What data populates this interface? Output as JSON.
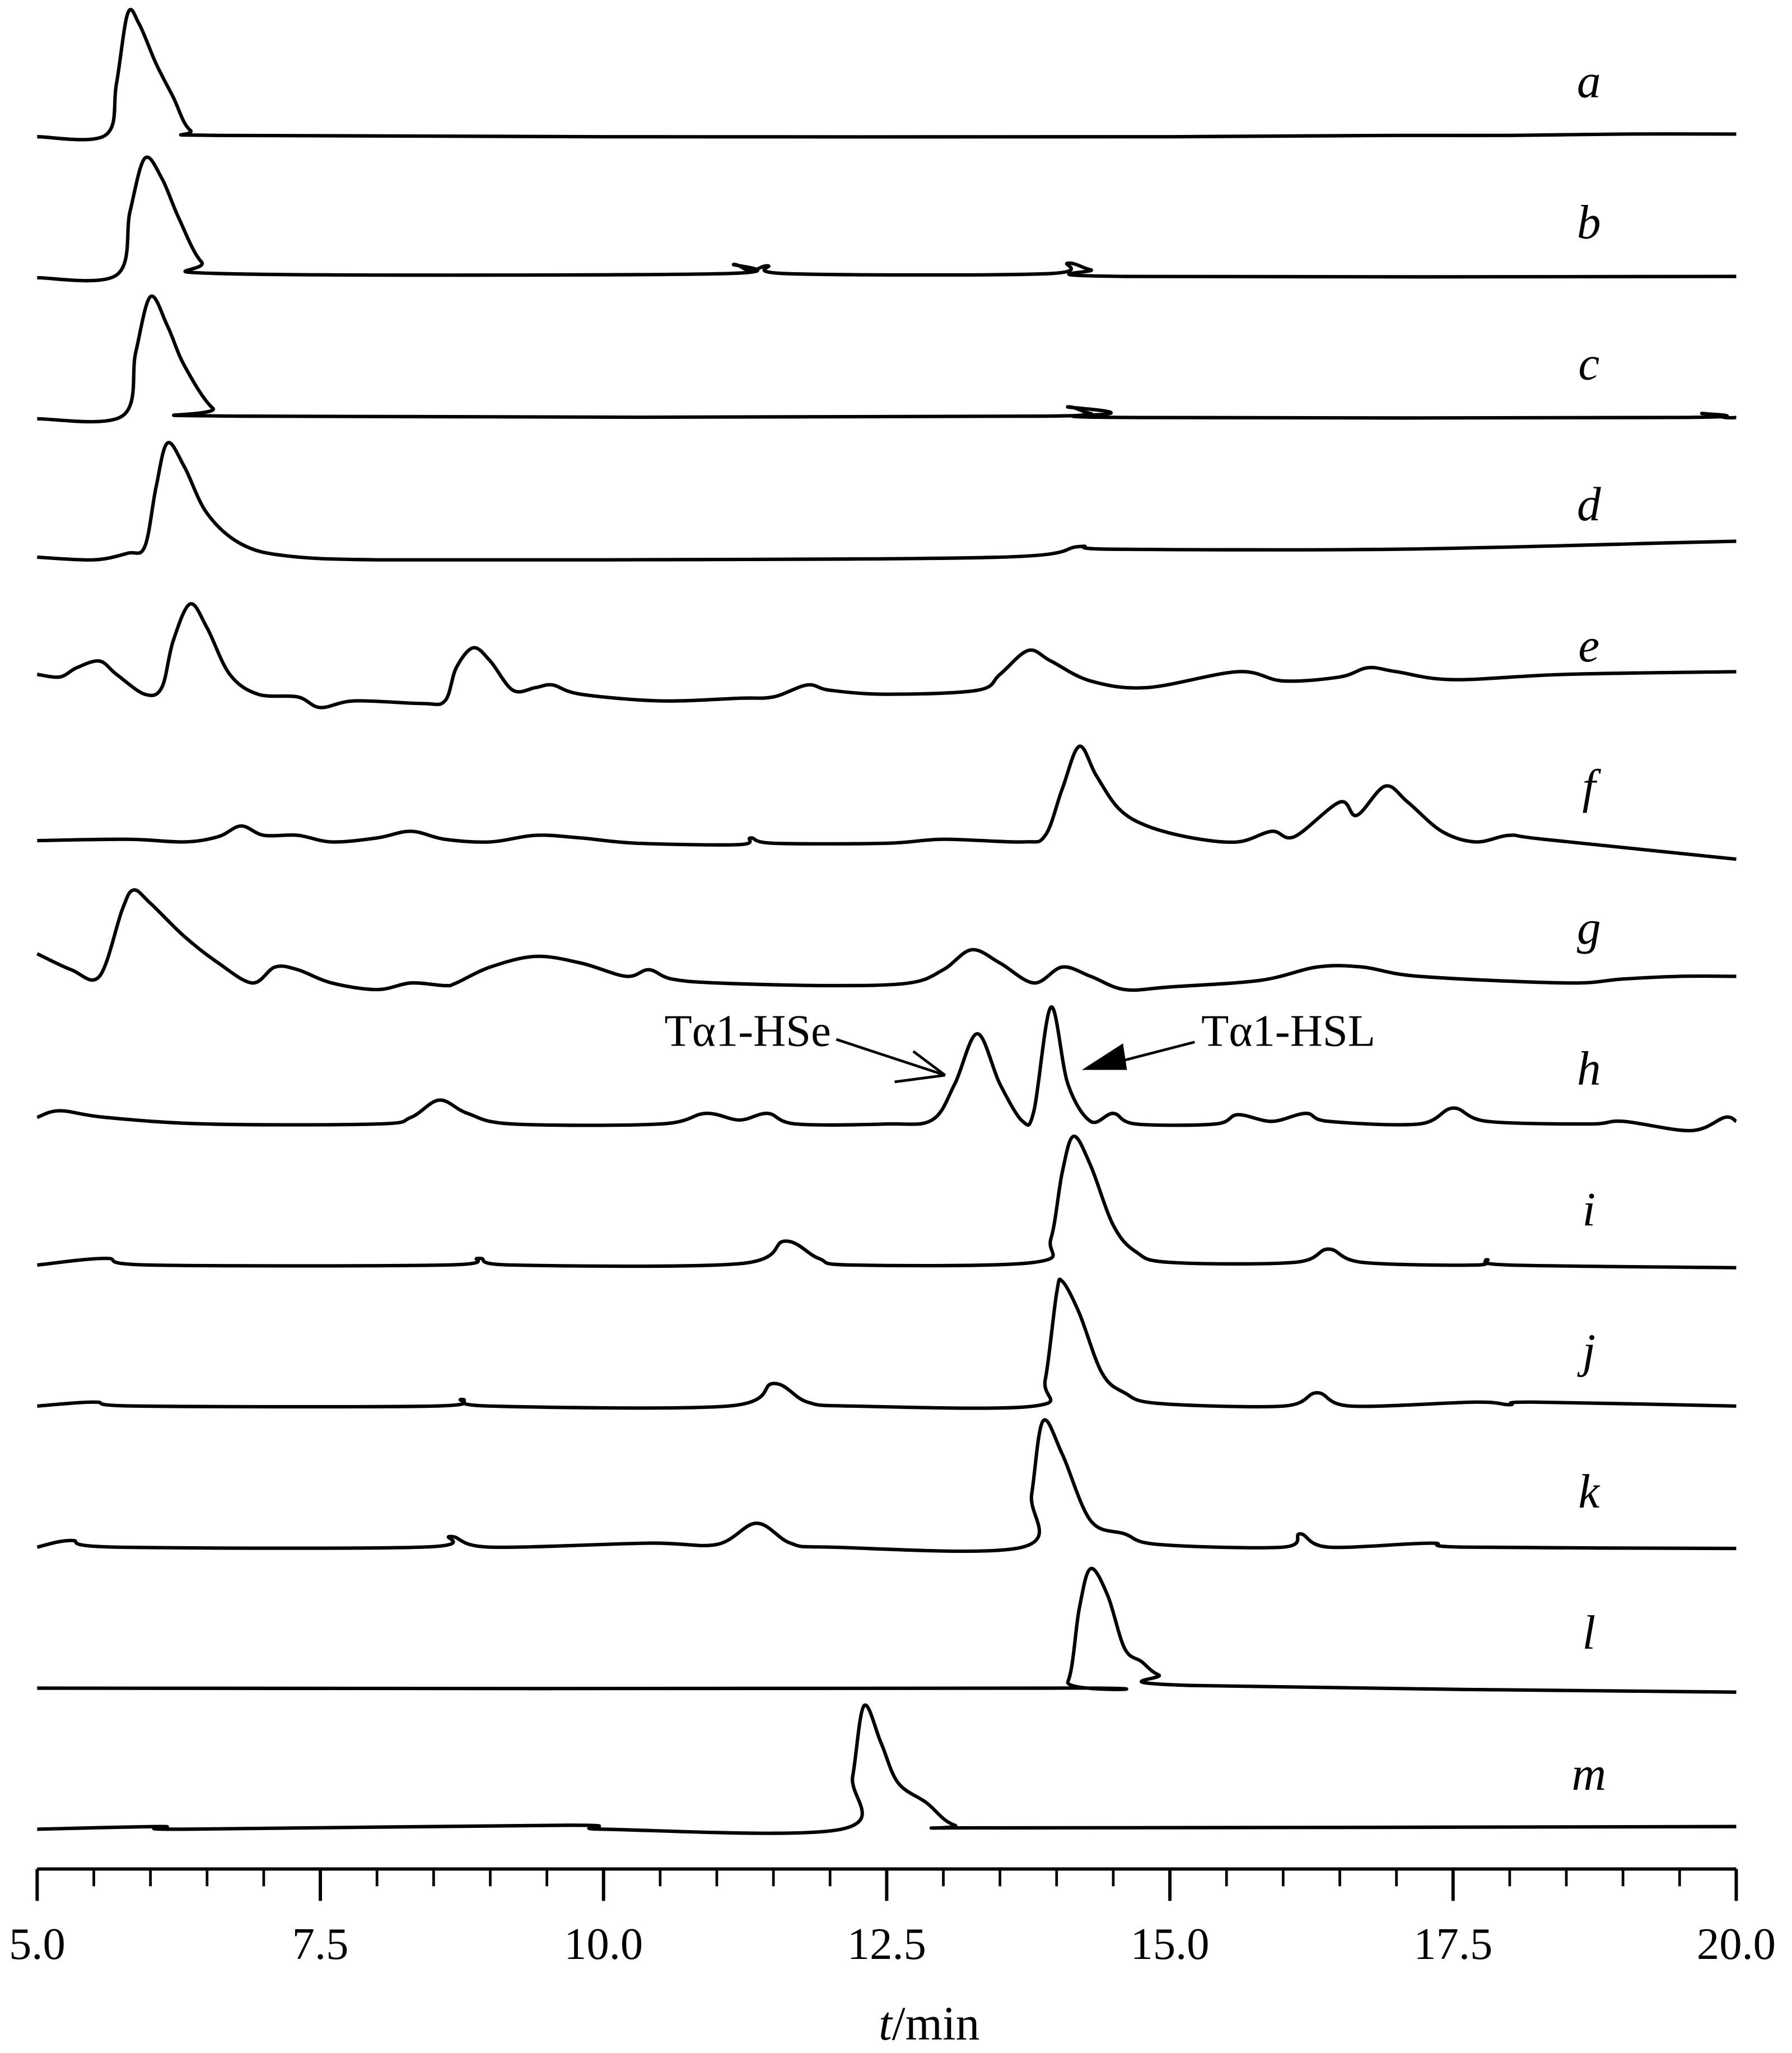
{
  "chart_data": {
    "type": "line",
    "color": "#000000",
    "xlabel_var": "t",
    "xlabel_unit": "/min",
    "xlim": [
      5,
      20
    ],
    "xticks": [
      {
        "value": 5,
        "label": "5.0"
      },
      {
        "value": 7.5,
        "label": "7.5"
      },
      {
        "value": 10,
        "label": "10.0"
      },
      {
        "value": 12.5,
        "label": "12.5"
      },
      {
        "value": 15,
        "label": "15.0"
      },
      {
        "value": 17.5,
        "label": "17.5"
      },
      {
        "value": 20,
        "label": "20.0"
      }
    ],
    "xminorticks": [
      5.5,
      6,
      6.5,
      7,
      8,
      8.5,
      9,
      9.5,
      10.5,
      11,
      11.5,
      12,
      13,
      13.5,
      14,
      14.5,
      15.5,
      16,
      16.5,
      17,
      18,
      18.5,
      19,
      19.5
    ],
    "annotations": [
      {
        "text": "Tα1-HSe"
      },
      {
        "text": "Tα1-HSL"
      }
    ],
    "series": [
      {
        "name": "a",
        "x": [
          5.0,
          5.6,
          5.7,
          5.8,
          5.9,
          6.05,
          6.2,
          6.35,
          6.6,
          10.0,
          15.0,
          17.0,
          18.0,
          19.0,
          20.0
        ],
        "values": [
          0,
          1,
          40,
          93,
          85,
          55,
          30,
          5,
          1,
          0,
          0,
          1,
          1,
          2,
          2
        ]
      },
      {
        "name": "b",
        "x": [
          5.0,
          5.7,
          5.82,
          5.95,
          6.1,
          6.25,
          6.45,
          6.7,
          11.0,
          11.15,
          11.3,
          11.45,
          11.65,
          13.9,
          14.1,
          14.3,
          14.6,
          20.0
        ],
        "values": [
          0,
          2,
          50,
          90,
          75,
          45,
          12,
          3,
          3,
          10,
          5,
          9,
          3,
          3,
          11,
          6,
          1,
          1
        ]
      },
      {
        "name": "c",
        "x": [
          5.0,
          5.75,
          5.87,
          6.0,
          6.15,
          6.3,
          6.55,
          6.8,
          13.9,
          14.1,
          14.3,
          14.6,
          19.5,
          19.7,
          19.9,
          20.0
        ],
        "values": [
          0,
          2,
          50,
          92,
          70,
          40,
          8,
          2,
          2,
          9,
          4,
          1,
          1,
          4,
          1,
          1
        ]
      },
      {
        "name": "d",
        "x": [
          5.0,
          5.5,
          5.8,
          5.95,
          6.05,
          6.15,
          6.3,
          6.5,
          6.8,
          7.2,
          8.0,
          10.0,
          13.5,
          14.2,
          14.5,
          17.0,
          19.5,
          20.0
        ],
        "values": [
          2,
          0,
          5,
          10,
          55,
          88,
          70,
          35,
          12,
          3,
          0,
          0,
          2,
          10,
          8,
          8,
          13,
          14
        ]
      },
      {
        "name": "e",
        "x": [
          5.0,
          5.2,
          5.35,
          5.55,
          5.7,
          5.95,
          6.1,
          6.2,
          6.35,
          6.5,
          6.7,
          6.95,
          7.3,
          7.5,
          7.8,
          8.4,
          8.6,
          8.7,
          8.85,
          9.0,
          9.2,
          9.4,
          9.55,
          9.8,
          10.5,
          11.2,
          11.5,
          11.8,
          12.0,
          12.5,
          13.3,
          13.5,
          13.75,
          13.95,
          14.3,
          14.8,
          15.6,
          16.0,
          16.5,
          16.75,
          17.0,
          17.5,
          18.5,
          20.0
        ],
        "values": [
          20,
          18,
          25,
          30,
          20,
          5,
          10,
          45,
          73,
          55,
          20,
          5,
          3,
          -5,
          0,
          -2,
          0,
          25,
          40,
          30,
          8,
          10,
          12,
          5,
          0,
          2,
          3,
          12,
          8,
          5,
          8,
          20,
          38,
          30,
          15,
          10,
          22,
          15,
          18,
          25,
          22,
          16,
          20,
          22
        ]
      },
      {
        "name": "f",
        "x": [
          5.0,
          5.8,
          6.3,
          6.6,
          6.8,
          7.0,
          7.3,
          7.6,
          8.0,
          8.3,
          8.6,
          9.0,
          9.4,
          9.8,
          10.3,
          11.2,
          11.3,
          11.5,
          12.5,
          13.0,
          13.7,
          13.9,
          14.05,
          14.2,
          14.35,
          14.55,
          14.8,
          15.2,
          15.6,
          15.9,
          16.1,
          16.5,
          16.65,
          16.9,
          17.1,
          17.4,
          17.7,
          18.0,
          18.3,
          20.0
        ],
        "values": [
          1,
          2,
          0,
          4,
          12,
          5,
          5,
          0,
          3,
          8,
          2,
          0,
          5,
          3,
          -1,
          -2,
          3,
          -1,
          -1,
          2,
          0,
          5,
          40,
          72,
          50,
          25,
          12,
          3,
          0,
          8,
          4,
          30,
          20,
          42,
          30,
          8,
          0,
          5,
          2,
          -13
        ]
      },
      {
        "name": "g",
        "x": [
          5.0,
          5.3,
          5.55,
          5.75,
          5.85,
          6.0,
          6.3,
          6.6,
          6.9,
          7.1,
          7.3,
          7.6,
          8.0,
          8.3,
          8.6,
          8.7,
          9.0,
          9.4,
          9.8,
          10.2,
          10.4,
          10.6,
          11.0,
          12.0,
          12.7,
          13.0,
          13.25,
          13.5,
          13.8,
          14.05,
          14.3,
          14.6,
          15.0,
          15.8,
          16.3,
          16.7,
          17.2,
          18.5,
          19.0,
          19.5,
          20.0
        ],
        "values": [
          22,
          10,
          5,
          55,
          70,
          60,
          35,
          15,
          0,
          12,
          10,
          0,
          -5,
          0,
          -2,
          0,
          12,
          20,
          15,
          5,
          10,
          3,
          0,
          -2,
          0,
          10,
          25,
          15,
          0,
          12,
          5,
          -5,
          -3,
          2,
          12,
          12,
          5,
          0,
          3,
          5,
          5
        ]
      },
      {
        "name": "h",
        "x": [
          5.0,
          5.2,
          5.6,
          6.5,
          8.0,
          8.3,
          8.55,
          8.8,
          9.2,
          10.5,
          10.9,
          11.2,
          11.45,
          11.7,
          12.5,
          12.9,
          13.1,
          13.3,
          13.5,
          13.7,
          13.8,
          13.95,
          14.1,
          14.3,
          14.5,
          14.7,
          15.4,
          15.6,
          15.9,
          16.2,
          16.4,
          17.2,
          17.5,
          17.8,
          18.7,
          19.0,
          19.6,
          19.9,
          20.0
        ],
        "values": [
          5,
          10,
          5,
          0,
          0,
          5,
          18,
          8,
          0,
          0,
          8,
          3,
          8,
          0,
          0,
          3,
          30,
          68,
          30,
          2,
          10,
          88,
          30,
          2,
          8,
          0,
          0,
          7,
          2,
          8,
          2,
          0,
          12,
          2,
          0,
          2,
          -5,
          5,
          2
        ]
      },
      {
        "name": "i",
        "x": [
          5.0,
          5.6,
          6.0,
          8.6,
          8.9,
          9.2,
          11.2,
          11.6,
          11.9,
          12.2,
          13.8,
          13.95,
          14.05,
          14.15,
          14.3,
          14.5,
          14.7,
          15.0,
          16.1,
          16.4,
          16.7,
          17.7,
          17.8,
          18.0,
          20.0
        ],
        "values": [
          0,
          5,
          0,
          0,
          5,
          0,
          1,
          18,
          5,
          0,
          2,
          20,
          70,
          97,
          75,
          30,
          10,
          2,
          2,
          12,
          2,
          0,
          4,
          0,
          -2
        ]
      },
      {
        "name": "j",
        "x": [
          5.0,
          5.5,
          5.9,
          8.5,
          8.75,
          9.0,
          11.1,
          11.5,
          11.8,
          12.2,
          13.8,
          13.9,
          14.0,
          14.05,
          14.2,
          14.4,
          14.6,
          14.9,
          16.0,
          16.3,
          16.6,
          17.7,
          18.0,
          18.2,
          20.0
        ],
        "values": [
          0,
          3,
          0,
          0,
          5,
          0,
          0,
          17,
          3,
          0,
          0,
          20,
          85,
          94,
          70,
          25,
          10,
          2,
          0,
          10,
          0,
          3,
          1,
          3,
          0
        ]
      },
      {
        "name": "k",
        "x": [
          5.0,
          5.3,
          5.7,
          8.4,
          8.65,
          9.0,
          10.4,
          11.0,
          11.35,
          11.65,
          12.0,
          13.7,
          13.78,
          13.88,
          14.05,
          14.3,
          14.6,
          14.9,
          16.0,
          16.15,
          16.4,
          17.3,
          17.6,
          20.0
        ],
        "values": [
          0,
          5,
          0,
          0,
          8,
          0,
          3,
          2,
          18,
          3,
          0,
          0,
          40,
          95,
          70,
          20,
          10,
          2,
          0,
          10,
          0,
          3,
          0,
          -1
        ]
      },
      {
        "name": "l",
        "x": [
          5.0,
          13.9,
          14.1,
          14.2,
          14.3,
          14.45,
          14.6,
          14.75,
          14.9,
          15.2,
          20.0
        ],
        "values": [
          0,
          0,
          5,
          60,
          90,
          70,
          30,
          20,
          10,
          2,
          -3
        ]
      },
      {
        "name": "m",
        "x": [
          5.0,
          6.1,
          6.3,
          9.7,
          10.0,
          12.1,
          12.2,
          12.3,
          12.45,
          12.6,
          12.85,
          13.1,
          13.5,
          20.0
        ],
        "values": [
          0,
          2,
          0,
          3,
          0,
          0,
          40,
          93,
          65,
          35,
          20,
          3,
          1,
          2
        ]
      }
    ]
  }
}
